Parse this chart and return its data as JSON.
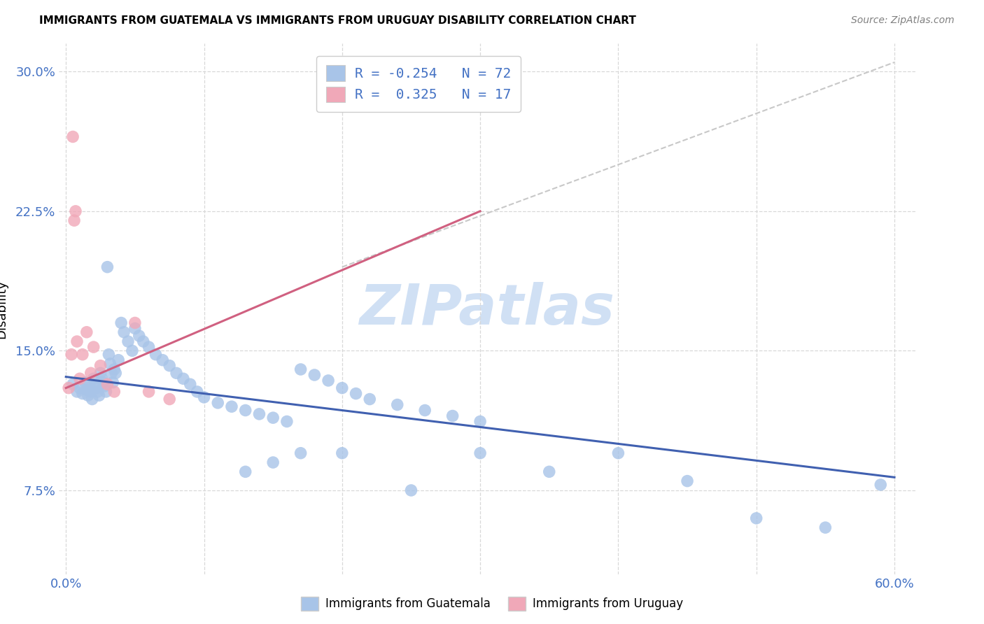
{
  "title": "IMMIGRANTS FROM GUATEMALA VS IMMIGRANTS FROM URUGUAY DISABILITY CORRELATION CHART",
  "source": "Source: ZipAtlas.com",
  "ylabel": "Disability",
  "ytick_vals": [
    0.075,
    0.15,
    0.225,
    0.3
  ],
  "ytick_labels": [
    "7.5%",
    "15.0%",
    "22.5%",
    "30.0%"
  ],
  "xtick_vals": [
    0.0,
    0.1,
    0.2,
    0.3,
    0.4,
    0.5,
    0.6
  ],
  "xtick_show": [
    0.0,
    0.6
  ],
  "xtick_labels": [
    "0.0%",
    "60.0%"
  ],
  "xlim": [
    -0.005,
    0.615
  ],
  "ylim": [
    0.03,
    0.315
  ],
  "blue_color": "#a8c4e8",
  "pink_color": "#f0a8b8",
  "line_blue_color": "#4060b0",
  "line_pink_color": "#d06080",
  "line_dash_color": "#c8c8c8",
  "watermark": "ZIPatlas",
  "watermark_color": "#d0e0f4",
  "background": "#ffffff",
  "grid_color": "#d8d8d8",
  "title_color": "#000000",
  "source_color": "#808080",
  "axis_label_color": "#4472c4",
  "legend_label_color": "#4472c4",
  "guatemala_x": [
    0.005,
    0.008,
    0.01,
    0.012,
    0.014,
    0.015,
    0.016,
    0.017,
    0.018,
    0.019,
    0.02,
    0.021,
    0.022,
    0.023,
    0.024,
    0.025,
    0.026,
    0.027,
    0.028,
    0.029,
    0.03,
    0.031,
    0.032,
    0.033,
    0.034,
    0.035,
    0.036,
    0.038,
    0.04,
    0.042,
    0.045,
    0.048,
    0.05,
    0.053,
    0.056,
    0.06,
    0.065,
    0.07,
    0.075,
    0.08,
    0.085,
    0.09,
    0.095,
    0.1,
    0.11,
    0.12,
    0.13,
    0.14,
    0.15,
    0.16,
    0.17,
    0.18,
    0.19,
    0.2,
    0.21,
    0.22,
    0.24,
    0.26,
    0.28,
    0.3,
    0.17,
    0.15,
    0.13,
    0.2,
    0.25,
    0.3,
    0.35,
    0.4,
    0.45,
    0.5,
    0.55,
    0.59
  ],
  "guatemala_y": [
    0.132,
    0.128,
    0.13,
    0.127,
    0.133,
    0.129,
    0.126,
    0.131,
    0.128,
    0.124,
    0.135,
    0.132,
    0.13,
    0.128,
    0.126,
    0.138,
    0.135,
    0.133,
    0.131,
    0.128,
    0.195,
    0.148,
    0.143,
    0.138,
    0.133,
    0.14,
    0.138,
    0.145,
    0.165,
    0.16,
    0.155,
    0.15,
    0.162,
    0.158,
    0.155,
    0.152,
    0.148,
    0.145,
    0.142,
    0.138,
    0.135,
    0.132,
    0.128,
    0.125,
    0.122,
    0.12,
    0.118,
    0.116,
    0.114,
    0.112,
    0.14,
    0.137,
    0.134,
    0.13,
    0.127,
    0.124,
    0.121,
    0.118,
    0.115,
    0.112,
    0.095,
    0.09,
    0.085,
    0.095,
    0.075,
    0.095,
    0.085,
    0.095,
    0.08,
    0.06,
    0.055,
    0.078
  ],
  "uruguay_x": [
    0.002,
    0.004,
    0.005,
    0.006,
    0.007,
    0.008,
    0.01,
    0.012,
    0.015,
    0.018,
    0.02,
    0.025,
    0.03,
    0.035,
    0.05,
    0.06,
    0.075
  ],
  "uruguay_y": [
    0.13,
    0.148,
    0.265,
    0.22,
    0.225,
    0.155,
    0.135,
    0.148,
    0.16,
    0.138,
    0.152,
    0.142,
    0.132,
    0.128,
    0.165,
    0.128,
    0.124
  ],
  "blue_line_x0": 0.0,
  "blue_line_x1": 0.6,
  "blue_line_y0": 0.136,
  "blue_line_y1": 0.082,
  "pink_line_x0": 0.0,
  "pink_line_x1": 0.3,
  "pink_line_y0": 0.13,
  "pink_line_y1": 0.225,
  "dash_line_x0": 0.2,
  "dash_line_x1": 0.6,
  "dash_line_y0": 0.195,
  "dash_line_y1": 0.305,
  "legend1_label": "R = -0.254   N = 72",
  "legend2_label": "R =  0.325   N = 17",
  "bot_legend1": "Immigrants from Guatemala",
  "bot_legend2": "Immigrants from Uruguay"
}
